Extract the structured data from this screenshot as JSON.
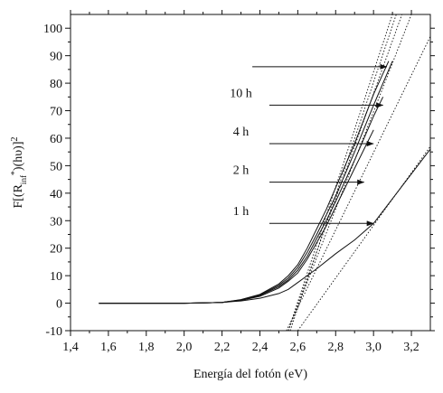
{
  "chart_data": {
    "type": "line",
    "title": "",
    "xlabel": "Energía del fotón (eV)",
    "ylabel_main": "F[(R",
    "ylabel_sub": "inf",
    "ylabel_sup1": "*",
    "ylabel_mid": ")(hυ)]",
    "ylabel_sup2": "2",
    "xlim": [
      1.4,
      3.3
    ],
    "ylim": [
      -10,
      105
    ],
    "x_ticks": [
      1.4,
      1.6,
      1.8,
      2.0,
      2.2,
      2.4,
      2.6,
      2.8,
      3.0,
      3.2
    ],
    "x_tick_labels": [
      "1,4",
      "1,6",
      "1,8",
      "2,0",
      "2,2",
      "2,4",
      "2,6",
      "2,8",
      "3,0",
      "3,2"
    ],
    "y_ticks": [
      -10,
      0,
      10,
      20,
      30,
      40,
      50,
      60,
      70,
      80,
      90,
      100
    ],
    "y_tick_labels": [
      "-10",
      "0",
      "10",
      "20",
      "30",
      "40",
      "50",
      "60",
      "70",
      "80",
      "90",
      "100"
    ],
    "grid": false,
    "legend": "none",
    "series": [
      {
        "x": [
          1.55,
          1.8,
          2.0,
          2.1,
          2.2,
          2.3,
          2.4,
          2.5,
          2.55,
          2.6,
          2.65,
          2.7,
          2.8,
          2.9,
          3.0,
          3.1,
          3.3
        ],
        "y": [
          0,
          0,
          0,
          0.1,
          0.3,
          0.8,
          1.8,
          3.5,
          5,
          7.5,
          10,
          12.5,
          18,
          23,
          29,
          38,
          56
        ]
      },
      {
        "x": [
          1.55,
          1.8,
          2.0,
          2.1,
          2.2,
          2.3,
          2.4,
          2.5,
          2.55,
          2.6,
          2.65,
          2.7,
          2.75,
          2.8,
          2.9,
          3.0
        ],
        "y": [
          0,
          0,
          0,
          0.1,
          0.3,
          1.0,
          2.5,
          5.5,
          8,
          11,
          16,
          22,
          28,
          35,
          49,
          63
        ]
      },
      {
        "x": [
          1.55,
          1.8,
          2.0,
          2.1,
          2.2,
          2.3,
          2.4,
          2.5,
          2.55,
          2.6,
          2.65,
          2.7,
          2.75,
          2.8,
          2.9,
          3.0,
          3.05
        ],
        "y": [
          0,
          0,
          0,
          0.1,
          0.3,
          1.1,
          2.8,
          6.0,
          8.5,
          12,
          17,
          23.5,
          30,
          37,
          52,
          68,
          75
        ]
      },
      {
        "x": [
          1.55,
          1.8,
          2.0,
          2.1,
          2.2,
          2.3,
          2.4,
          2.5,
          2.55,
          2.6,
          2.65,
          2.7,
          2.75,
          2.8,
          2.9,
          3.0,
          3.1
        ],
        "y": [
          0,
          0,
          0,
          0.1,
          0.3,
          1.2,
          3.0,
          6.5,
          9.2,
          13,
          18.5,
          25,
          32,
          39,
          55,
          72,
          88
        ]
      },
      {
        "x": [
          1.55,
          1.8,
          2.0,
          2.1,
          2.2,
          2.3,
          2.4,
          2.5,
          2.55,
          2.6,
          2.65,
          2.7,
          2.75,
          2.8,
          2.9,
          3.0,
          3.08
        ],
        "y": [
          0,
          0,
          0,
          0.1,
          0.3,
          1.3,
          3.2,
          7.0,
          10,
          14,
          20,
          27,
          34,
          42,
          58,
          76,
          88
        ]
      }
    ],
    "fit_lines": [
      {
        "x": [
          2.6,
          3.3
        ],
        "y": [
          -10,
          57
        ]
      },
      {
        "x": [
          2.54,
          3.3
        ],
        "y": [
          -10,
          97
        ]
      },
      {
        "x": [
          2.55,
          3.2
        ],
        "y": [
          -10,
          105
        ]
      },
      {
        "x": [
          2.55,
          3.15
        ],
        "y": [
          -10,
          105
        ]
      },
      {
        "x": [
          2.56,
          3.12
        ],
        "y": [
          -10,
          105
        ]
      },
      {
        "x": [
          2.55,
          3.1
        ],
        "y": [
          -10,
          105
        ]
      }
    ],
    "annotations": [
      {
        "text": "1 h",
        "label_x": 2.3,
        "label_y": 32,
        "arrow_x1": 2.45,
        "arrow_y1": 29,
        "arrow_x2": 3.0,
        "arrow_y2": 29
      },
      {
        "text": "2 h",
        "label_x": 2.3,
        "label_y": 47,
        "arrow_x1": 2.45,
        "arrow_y1": 44,
        "arrow_x2": 2.95,
        "arrow_y2": 44
      },
      {
        "text": "4 h",
        "label_x": 2.3,
        "label_y": 61,
        "arrow_x1": 2.45,
        "arrow_y1": 58,
        "arrow_x2": 3.0,
        "arrow_y2": 58
      },
      {
        "text": "10 h",
        "label_x": 2.3,
        "label_y": 75,
        "arrow_x1": 2.45,
        "arrow_y1": 72,
        "arrow_x2": 3.05,
        "arrow_y2": 72
      },
      {
        "text": "",
        "label_x": 2.3,
        "label_y": 89,
        "arrow_x1": 2.36,
        "arrow_y1": 86,
        "arrow_x2": 3.07,
        "arrow_y2": 86
      }
    ]
  }
}
